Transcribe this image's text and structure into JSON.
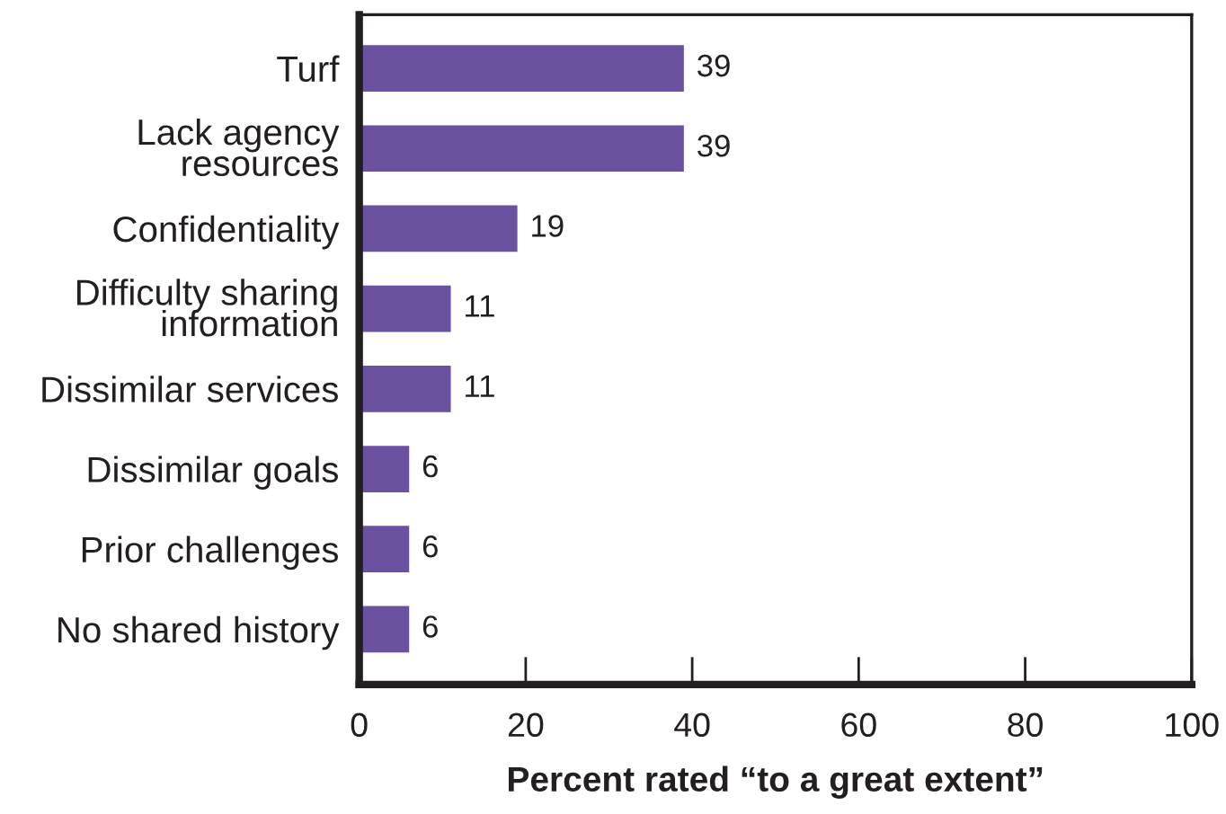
{
  "chart_data": {
    "type": "bar",
    "orientation": "horizontal",
    "categories": [
      "Turf",
      "Lack agency\nresources",
      "Confidentiality",
      "Difficulty sharing\ninformation",
      "Dissimilar services",
      "Dissimilar goals",
      "Prior challenges",
      "No shared history"
    ],
    "values": [
      39,
      39,
      19,
      11,
      11,
      6,
      6,
      6
    ],
    "color": "#6a52a1",
    "xlim": [
      0,
      100
    ],
    "xticks": [
      0,
      20,
      40,
      60,
      80,
      100
    ],
    "xlabel": "Percent rated “to a great extent”",
    "data_labels": true,
    "grid": false,
    "legend": false
  }
}
